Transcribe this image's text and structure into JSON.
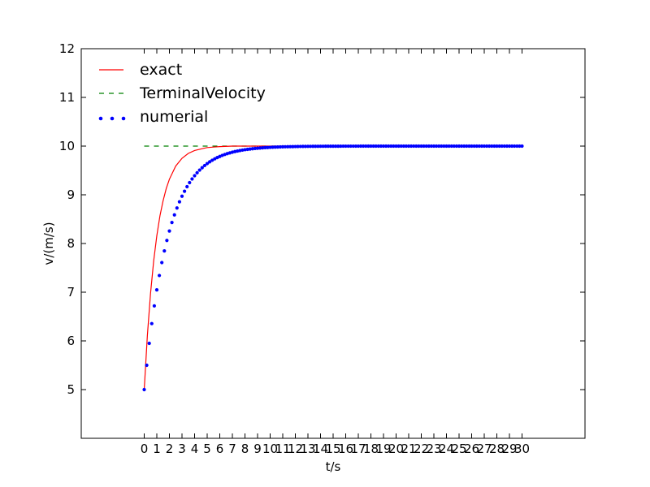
{
  "chart_data": {
    "type": "line",
    "title": "",
    "xlabel": "t/s",
    "ylabel": "v/(m/s)",
    "xlim": [
      -5,
      35
    ],
    "ylim": [
      4,
      12
    ],
    "x_ticks": [
      0,
      1,
      2,
      3,
      4,
      5,
      6,
      7,
      8,
      9,
      10,
      11,
      12,
      13,
      14,
      15,
      16,
      17,
      18,
      19,
      20,
      21,
      22,
      23,
      24,
      25,
      26,
      27,
      28,
      29,
      30
    ],
    "y_ticks": [
      5,
      6,
      7,
      8,
      9,
      10,
      11,
      12
    ],
    "grid": false,
    "legend_position": "top-left",
    "colors": {
      "exact": "#ff0000",
      "terminal": "#008000",
      "numerial": "#0000ff"
    },
    "series": [
      {
        "name": "exact",
        "style": "solid-line",
        "x": [
          0,
          0.25,
          0.5,
          0.75,
          1,
          1.25,
          1.5,
          1.75,
          2,
          2.5,
          3,
          3.5,
          4,
          4.5,
          5,
          5.5,
          6,
          7,
          8,
          10,
          15,
          20,
          25,
          30
        ],
        "y": [
          5.0,
          6.11,
          6.97,
          7.64,
          8.16,
          8.57,
          8.88,
          9.13,
          9.32,
          9.59,
          9.75,
          9.85,
          9.91,
          9.94,
          9.97,
          9.98,
          9.99,
          10.0,
          10.0,
          10.0,
          10.0,
          10.0,
          10.0,
          10.0
        ]
      },
      {
        "name": "TerminalVelocity",
        "style": "dashed-line",
        "x": [
          0,
          30
        ],
        "y": [
          10,
          10
        ]
      },
      {
        "name": "numerial",
        "style": "dots",
        "x_start": 0,
        "x_end": 30,
        "x_step": 0.2,
        "y0": 5,
        "terminal_velocity": 10,
        "decay_per_step": 0.9
      }
    ]
  }
}
